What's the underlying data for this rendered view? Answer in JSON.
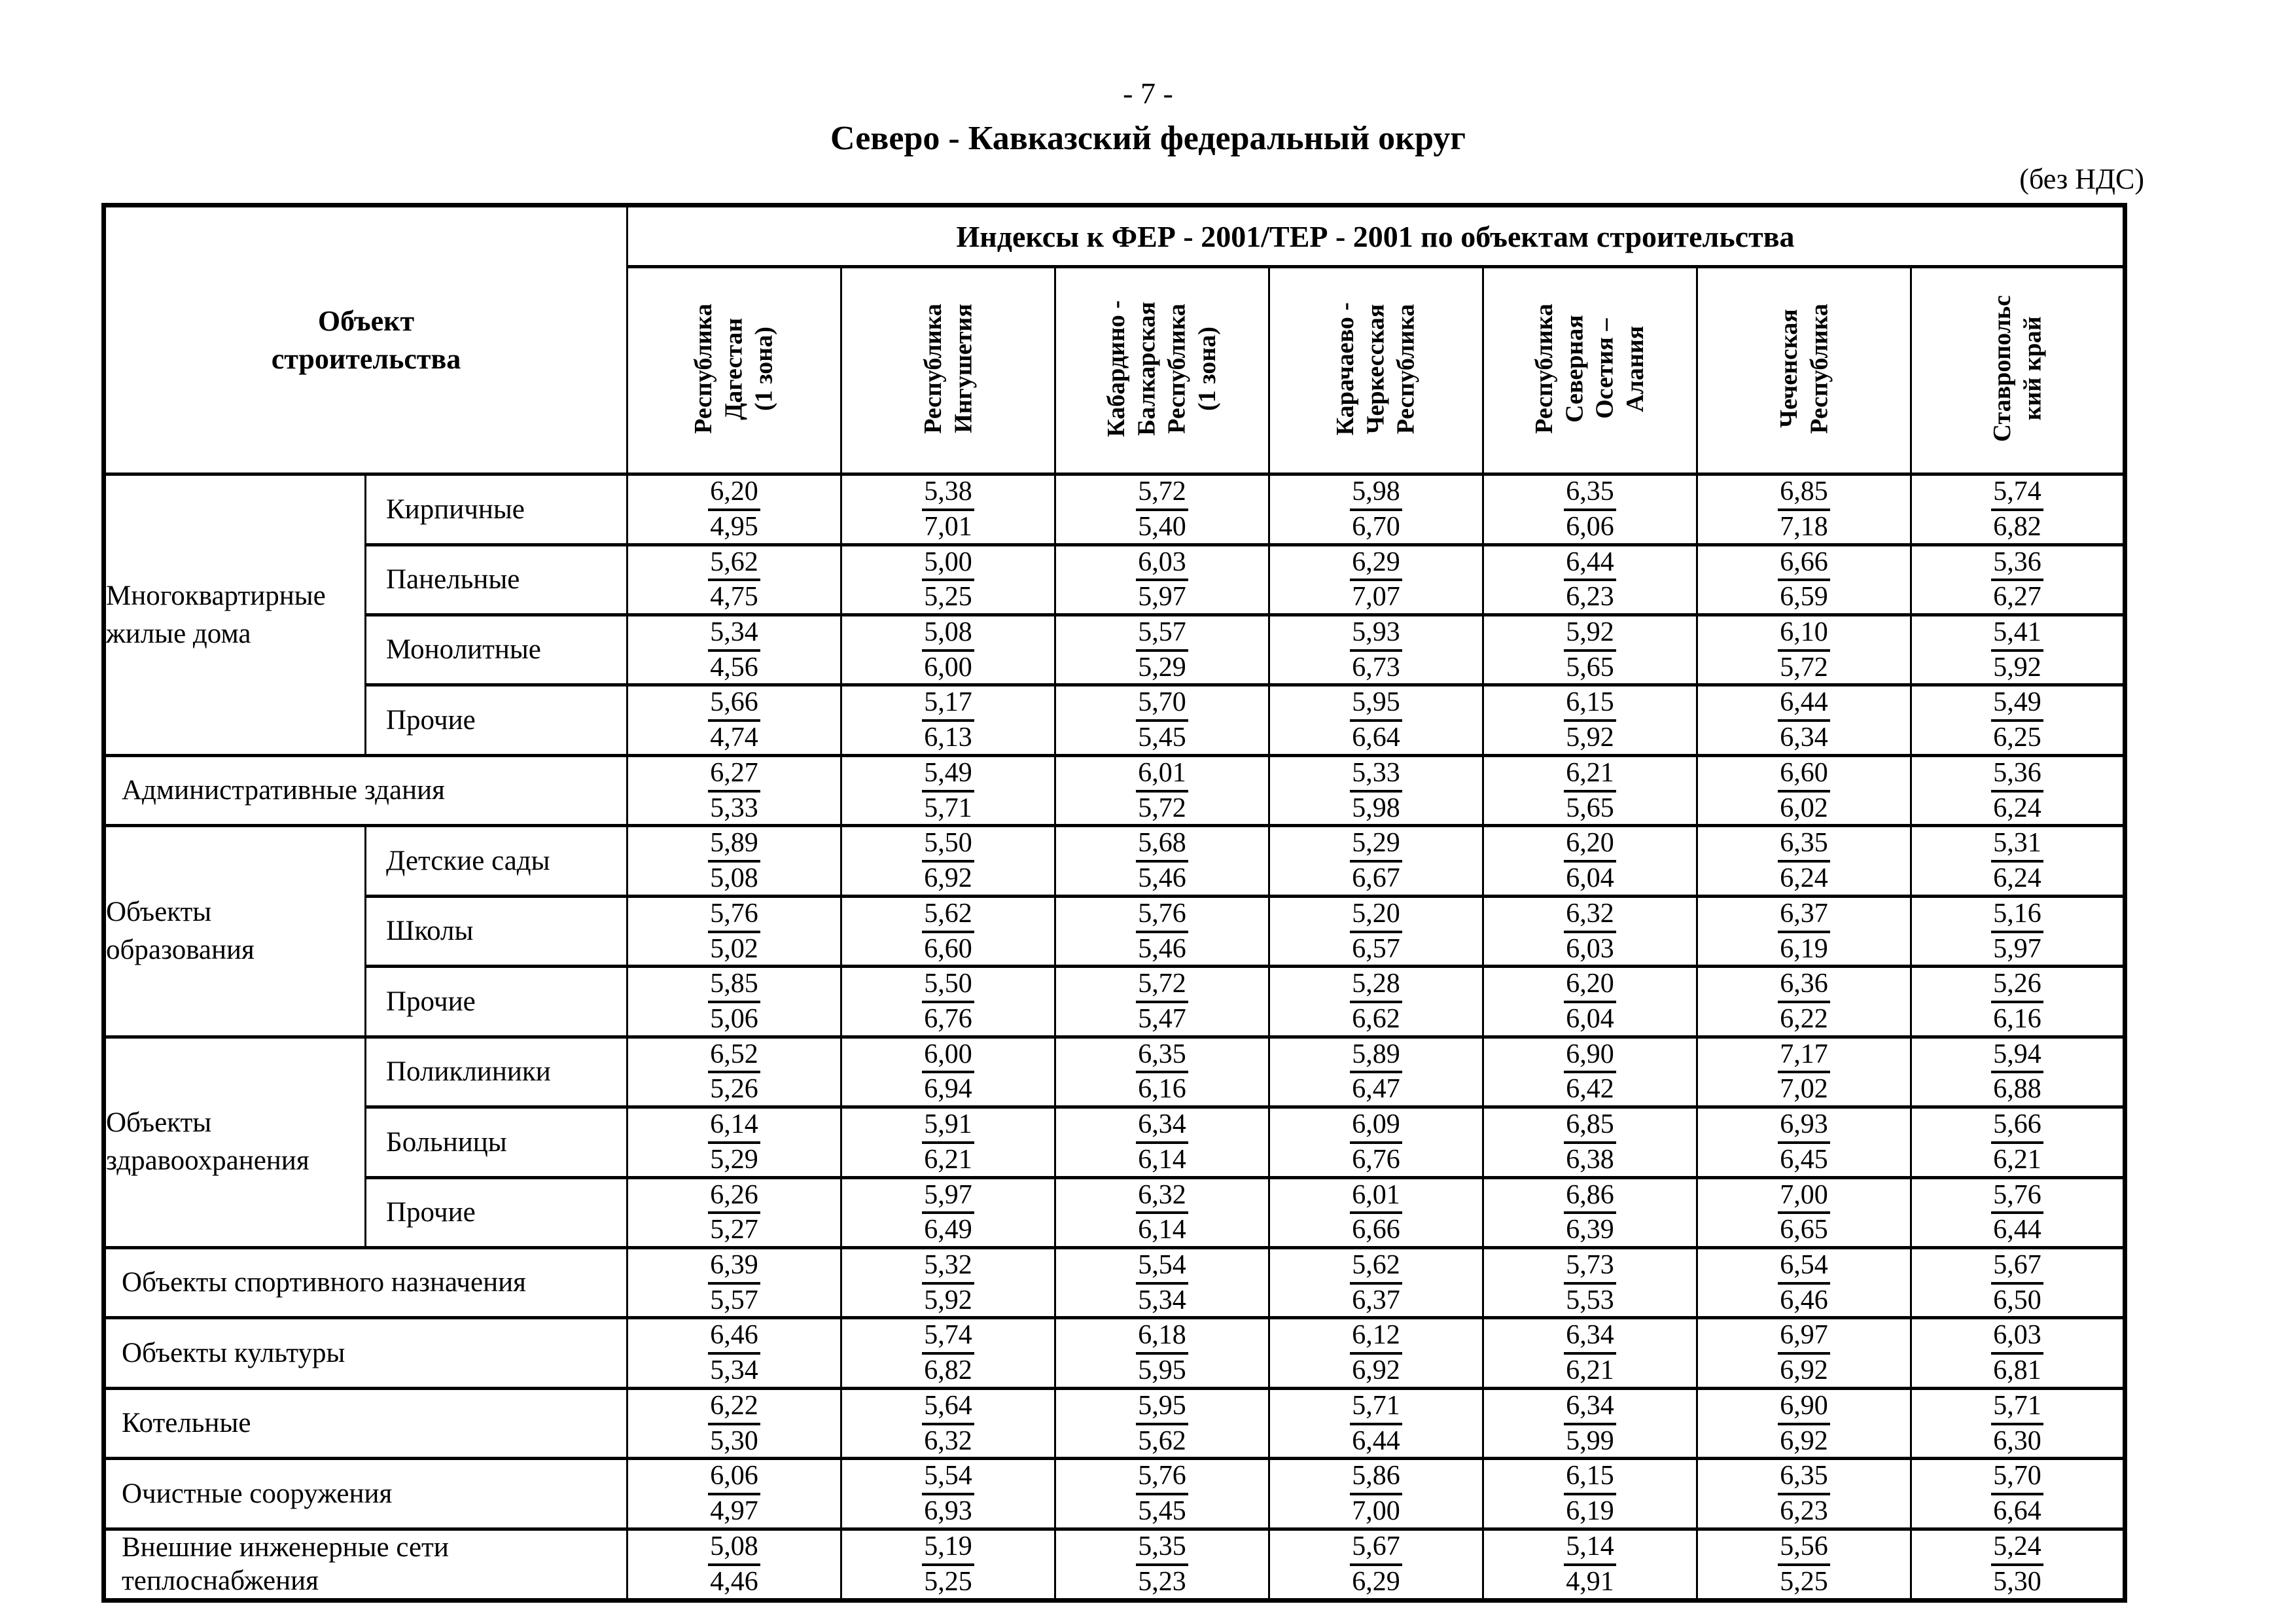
{
  "page": {
    "number": "- 7 -",
    "title": "Северо - Кавказский федеральный округ",
    "vat_note": "(без НДС)"
  },
  "table": {
    "object_header": "Объект\nстроительства",
    "index_header": "Индексы к ФЕР - 2001/ТЕР - 2001 по объектам строительства",
    "regions": [
      "Республика\nДагестан\n(1 зона)",
      "Республика\nИнгушетия",
      "Кабардино -\nБалкарская\nРеспублика\n(1 зона)",
      "Карачаево -\nЧеркесская\nРеспублика",
      "Республика\nСеверная\nОсетия –\nАлания",
      "Чеченская\nРеспублика",
      "Ставропольс\nкий край"
    ],
    "rows": [
      {
        "group": "Многоквартирные\nжилые дома",
        "group_span": 4,
        "label": "Кирпичные",
        "cells": [
          [
            "6,20",
            "4,95"
          ],
          [
            "5,38",
            "7,01"
          ],
          [
            "5,72",
            "5,40"
          ],
          [
            "5,98",
            "6,70"
          ],
          [
            "6,35",
            "6,06"
          ],
          [
            "6,85",
            "7,18"
          ],
          [
            "5,74",
            "6,82"
          ]
        ]
      },
      {
        "label": "Панельные",
        "cells": [
          [
            "5,62",
            "4,75"
          ],
          [
            "5,00",
            "5,25"
          ],
          [
            "6,03",
            "5,97"
          ],
          [
            "6,29",
            "7,07"
          ],
          [
            "6,44",
            "6,23"
          ],
          [
            "6,66",
            "6,59"
          ],
          [
            "5,36",
            "6,27"
          ]
        ]
      },
      {
        "label": "Монолитные",
        "cells": [
          [
            "5,34",
            "4,56"
          ],
          [
            "5,08",
            "6,00"
          ],
          [
            "5,57",
            "5,29"
          ],
          [
            "5,93",
            "6,73"
          ],
          [
            "5,92",
            "5,65"
          ],
          [
            "6,10",
            "5,72"
          ],
          [
            "5,41",
            "5,92"
          ]
        ]
      },
      {
        "label": "Прочие",
        "cells": [
          [
            "5,66",
            "4,74"
          ],
          [
            "5,17",
            "6,13"
          ],
          [
            "5,70",
            "5,45"
          ],
          [
            "5,95",
            "6,64"
          ],
          [
            "6,15",
            "5,92"
          ],
          [
            "6,44",
            "6,34"
          ],
          [
            "5,49",
            "6,25"
          ]
        ]
      },
      {
        "label": "Административные здания",
        "colspan": 2,
        "cells": [
          [
            "6,27",
            "5,33"
          ],
          [
            "5,49",
            "5,71"
          ],
          [
            "6,01",
            "5,72"
          ],
          [
            "5,33",
            "5,98"
          ],
          [
            "6,21",
            "5,65"
          ],
          [
            "6,60",
            "6,02"
          ],
          [
            "5,36",
            "6,24"
          ]
        ]
      },
      {
        "group": "Объекты\nобразования",
        "group_span": 3,
        "label": "Детские сады",
        "cells": [
          [
            "5,89",
            "5,08"
          ],
          [
            "5,50",
            "6,92"
          ],
          [
            "5,68",
            "5,46"
          ],
          [
            "5,29",
            "6,67"
          ],
          [
            "6,20",
            "6,04"
          ],
          [
            "6,35",
            "6,24"
          ],
          [
            "5,31",
            "6,24"
          ]
        ]
      },
      {
        "label": "Школы",
        "cells": [
          [
            "5,76",
            "5,02"
          ],
          [
            "5,62",
            "6,60"
          ],
          [
            "5,76",
            "5,46"
          ],
          [
            "5,20",
            "6,57"
          ],
          [
            "6,32",
            "6,03"
          ],
          [
            "6,37",
            "6,19"
          ],
          [
            "5,16",
            "5,97"
          ]
        ]
      },
      {
        "label": "Прочие",
        "cells": [
          [
            "5,85",
            "5,06"
          ],
          [
            "5,50",
            "6,76"
          ],
          [
            "5,72",
            "5,47"
          ],
          [
            "5,28",
            "6,62"
          ],
          [
            "6,20",
            "6,04"
          ],
          [
            "6,36",
            "6,22"
          ],
          [
            "5,26",
            "6,16"
          ]
        ]
      },
      {
        "group": "Объекты\nздравоохранения",
        "group_span": 3,
        "label": "Поликлиники",
        "cells": [
          [
            "6,52",
            "5,26"
          ],
          [
            "6,00",
            "6,94"
          ],
          [
            "6,35",
            "6,16"
          ],
          [
            "5,89",
            "6,47"
          ],
          [
            "6,90",
            "6,42"
          ],
          [
            "7,17",
            "7,02"
          ],
          [
            "5,94",
            "6,88"
          ]
        ]
      },
      {
        "label": "Больницы",
        "cells": [
          [
            "6,14",
            "5,29"
          ],
          [
            "5,91",
            "6,21"
          ],
          [
            "6,34",
            "6,14"
          ],
          [
            "6,09",
            "6,76"
          ],
          [
            "6,85",
            "6,38"
          ],
          [
            "6,93",
            "6,45"
          ],
          [
            "5,66",
            "6,21"
          ]
        ]
      },
      {
        "label": "Прочие",
        "cells": [
          [
            "6,26",
            "5,27"
          ],
          [
            "5,97",
            "6,49"
          ],
          [
            "6,32",
            "6,14"
          ],
          [
            "6,01",
            "6,66"
          ],
          [
            "6,86",
            "6,39"
          ],
          [
            "7,00",
            "6,65"
          ],
          [
            "5,76",
            "6,44"
          ]
        ]
      },
      {
        "label": "Объекты спортивного назначения",
        "colspan": 2,
        "cells": [
          [
            "6,39",
            "5,57"
          ],
          [
            "5,32",
            "5,92"
          ],
          [
            "5,54",
            "5,34"
          ],
          [
            "5,62",
            "6,37"
          ],
          [
            "5,73",
            "5,53"
          ],
          [
            "6,54",
            "6,46"
          ],
          [
            "5,67",
            "6,50"
          ]
        ]
      },
      {
        "label": "Объекты культуры",
        "colspan": 2,
        "cells": [
          [
            "6,46",
            "5,34"
          ],
          [
            "5,74",
            "6,82"
          ],
          [
            "6,18",
            "5,95"
          ],
          [
            "6,12",
            "6,92"
          ],
          [
            "6,34",
            "6,21"
          ],
          [
            "6,97",
            "6,92"
          ],
          [
            "6,03",
            "6,81"
          ]
        ]
      },
      {
        "label": "Котельные",
        "colspan": 2,
        "cells": [
          [
            "6,22",
            "5,30"
          ],
          [
            "5,64",
            "6,32"
          ],
          [
            "5,95",
            "5,62"
          ],
          [
            "5,71",
            "6,44"
          ],
          [
            "6,34",
            "5,99"
          ],
          [
            "6,90",
            "6,92"
          ],
          [
            "5,71",
            "6,30"
          ]
        ]
      },
      {
        "label": "Очистные сооружения",
        "colspan": 2,
        "cells": [
          [
            "6,06",
            "4,97"
          ],
          [
            "5,54",
            "6,93"
          ],
          [
            "5,76",
            "5,45"
          ],
          [
            "5,86",
            "7,00"
          ],
          [
            "6,15",
            "6,19"
          ],
          [
            "6,35",
            "6,23"
          ],
          [
            "5,70",
            "6,64"
          ]
        ]
      },
      {
        "label": "Внешние инженерные сети\nтеплоснабжения",
        "colspan": 2,
        "cells": [
          [
            "5,08",
            "4,46"
          ],
          [
            "5,19",
            "5,25"
          ],
          [
            "5,35",
            "5,23"
          ],
          [
            "5,67",
            "6,29"
          ],
          [
            "5,14",
            "4,91"
          ],
          [
            "5,56",
            "5,25"
          ],
          [
            "5,24",
            "5,30"
          ]
        ]
      }
    ]
  }
}
